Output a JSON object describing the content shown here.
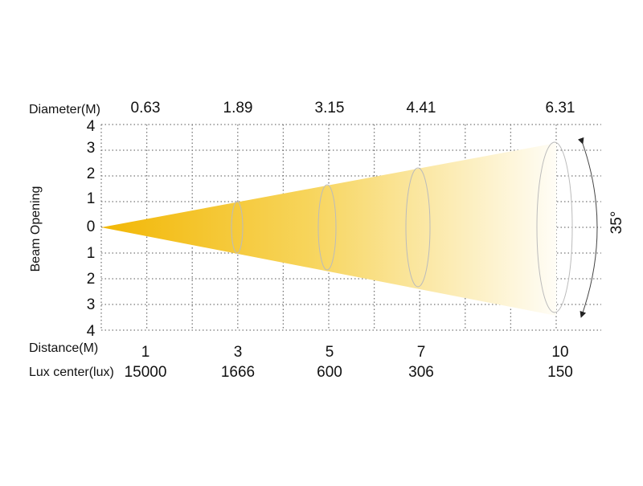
{
  "header": {
    "diameter_label": "Diameter(M)",
    "diameters": [
      "0.63",
      "1.89",
      "3.15",
      "4.41",
      "6.31"
    ]
  },
  "axis": {
    "title": "Beam Opening",
    "labels": [
      "4",
      "3",
      "2",
      "1",
      "0",
      "1",
      "2",
      "3",
      "4"
    ]
  },
  "footer": {
    "distance_label": "Distance(M)",
    "distances": [
      "1",
      "3",
      "5",
      "7",
      "10"
    ],
    "lux_label": "Lux center(lux)",
    "lux": [
      "15000",
      "1666",
      "600",
      "306",
      "150"
    ]
  },
  "beam": {
    "angle": "35°"
  }
}
